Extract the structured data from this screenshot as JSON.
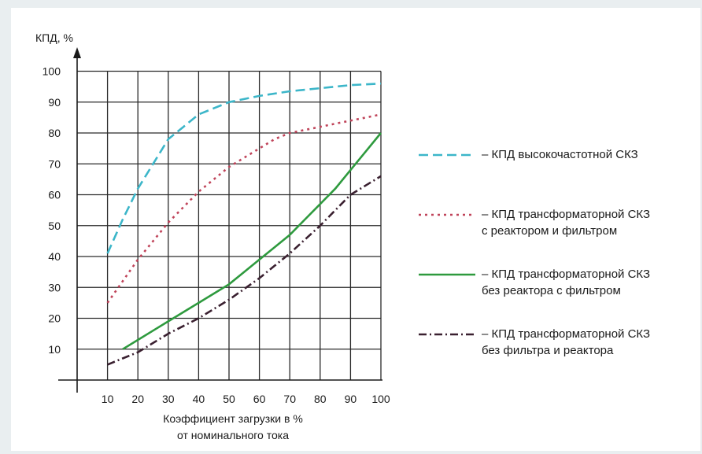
{
  "chart_data": {
    "type": "line",
    "ylabel": "КПД, %",
    "xlabel": "Коэффициент загрузки в %\nот номинального тока",
    "x_ticks": [
      "10",
      "20",
      "30",
      "40",
      "50",
      "60",
      "70",
      "80",
      "90",
      "100"
    ],
    "y_ticks": [
      "10",
      "20",
      "30",
      "40",
      "50",
      "60",
      "70",
      "80",
      "90",
      "100"
    ],
    "xlim": [
      0,
      100
    ],
    "ylim": [
      0,
      100
    ],
    "grid": true,
    "legend_position": "right",
    "series": [
      {
        "name": "– КПД высокочастотной СКЗ",
        "color": "#3cb6c9",
        "dash": "dashed",
        "points": [
          [
            10,
            41
          ],
          [
            15,
            52
          ],
          [
            20,
            62
          ],
          [
            25,
            70
          ],
          [
            30,
            78
          ],
          [
            35,
            82
          ],
          [
            40,
            86
          ],
          [
            45,
            88
          ],
          [
            50,
            90
          ],
          [
            60,
            92
          ],
          [
            70,
            93.5
          ],
          [
            80,
            94.5
          ],
          [
            90,
            95.5
          ],
          [
            100,
            96
          ]
        ]
      },
      {
        "name": "– КПД трансформаторной СКЗ\nс реактором и фильтром",
        "color": "#c0445a",
        "dash": "dotted",
        "points": [
          [
            10,
            25
          ],
          [
            15,
            32
          ],
          [
            20,
            39
          ],
          [
            25,
            45
          ],
          [
            30,
            51
          ],
          [
            35,
            56
          ],
          [
            40,
            61
          ],
          [
            45,
            65
          ],
          [
            50,
            69
          ],
          [
            55,
            72
          ],
          [
            60,
            75
          ],
          [
            65,
            78
          ],
          [
            70,
            80
          ],
          [
            75,
            81
          ],
          [
            80,
            82
          ],
          [
            85,
            83
          ],
          [
            90,
            84
          ],
          [
            95,
            85
          ],
          [
            100,
            86
          ]
        ]
      },
      {
        "name": "– КПД трансформаторной СКЗ\nбез реактора с фильтром",
        "color": "#2e9a3e",
        "dash": "solid",
        "points": [
          [
            15,
            10
          ],
          [
            20,
            13
          ],
          [
            25,
            16
          ],
          [
            30,
            19
          ],
          [
            35,
            22
          ],
          [
            40,
            25
          ],
          [
            45,
            28
          ],
          [
            50,
            31
          ],
          [
            55,
            35
          ],
          [
            60,
            39
          ],
          [
            65,
            43
          ],
          [
            70,
            47
          ],
          [
            75,
            52
          ],
          [
            80,
            57
          ],
          [
            85,
            62
          ],
          [
            90,
            68
          ],
          [
            95,
            74
          ],
          [
            100,
            80
          ]
        ]
      },
      {
        "name": "– КПД трансформаторной СКЗ\nбез фильтра и реактора",
        "color": "#3a2030",
        "dash": "dashdot",
        "points": [
          [
            10,
            5
          ],
          [
            15,
            7
          ],
          [
            20,
            9
          ],
          [
            25,
            12
          ],
          [
            30,
            15
          ],
          [
            35,
            17.5
          ],
          [
            40,
            20
          ],
          [
            45,
            23
          ],
          [
            50,
            26
          ],
          [
            55,
            29.5
          ],
          [
            60,
            33
          ],
          [
            65,
            37
          ],
          [
            70,
            41
          ],
          [
            75,
            45.5
          ],
          [
            80,
            50
          ],
          [
            85,
            55
          ],
          [
            90,
            60
          ],
          [
            95,
            63
          ],
          [
            100,
            66
          ]
        ]
      }
    ]
  }
}
